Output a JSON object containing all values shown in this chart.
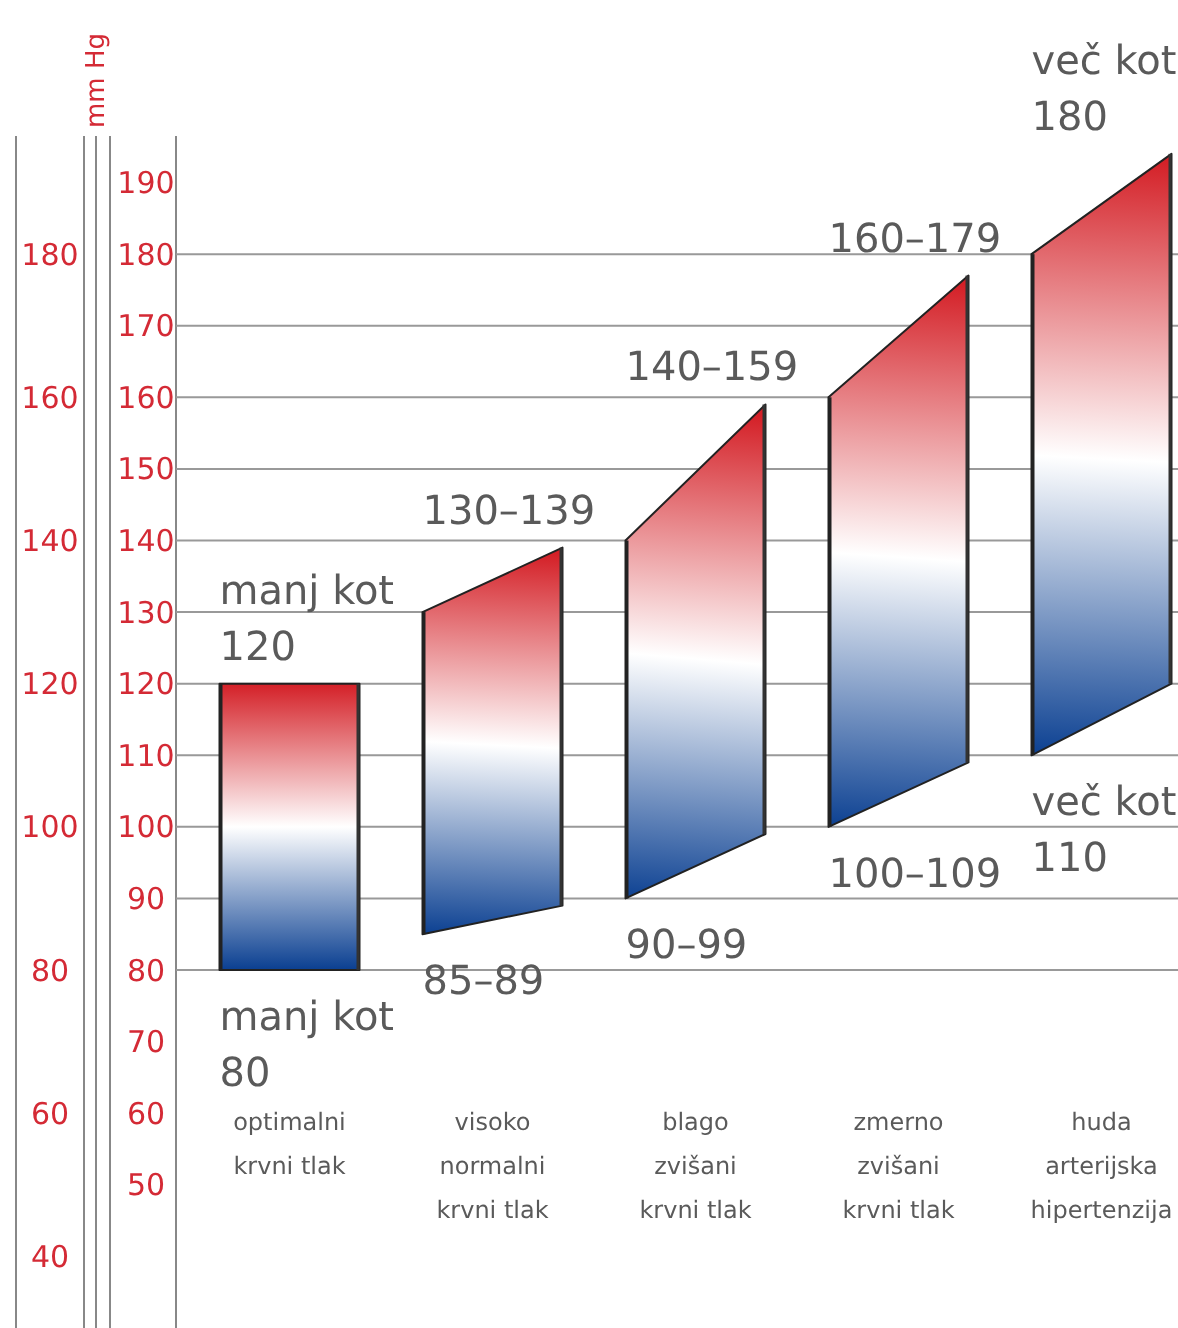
{
  "chart_data": {
    "type": "bar",
    "y2label": "mm Hg",
    "categories": [
      "optimalni\nkrvni tlak",
      "visoko\nnormalni\nkrvni tlak",
      "blago\nzvišani\nkrvni tlak",
      "zmerno\nzvišani\nkrvni tlak",
      "huda\narterijska\nhipertenzija"
    ],
    "ylim": [
      30,
      196.5
    ],
    "yticks": [
      50,
      60,
      70,
      80,
      90,
      100,
      110,
      120,
      130,
      140,
      150,
      160,
      170,
      180,
      190
    ],
    "y2lim": [
      30,
      196.5
    ],
    "y2ticks": [
      40,
      60,
      80,
      100,
      120,
      140,
      160,
      180
    ],
    "ref_lines": [
      {
        "axis": "y",
        "value": 80
      },
      {
        "axis": "y",
        "value": 90
      },
      {
        "axis": "y",
        "value": 100
      },
      {
        "axis": "y",
        "value": 110
      },
      {
        "axis": "y",
        "value": 120
      },
      {
        "axis": "y",
        "value": 130
      },
      {
        "axis": "y",
        "value": 140
      },
      {
        "axis": "y",
        "value": 150
      },
      {
        "axis": "y",
        "value": 160
      },
      {
        "axis": "y",
        "value": 170
      },
      {
        "axis": "y",
        "value": 180
      }
    ],
    "series": [
      {
        "base": [
          80,
          85,
          90,
          100,
          110
        ],
        "values": [
          40,
          45,
          50,
          60,
          70
        ],
        "color": "#222222"
      },
      {
        "base": [
          80,
          89,
          99,
          109,
          120
        ],
        "values": [
          40,
          50,
          60,
          68,
          74
        ],
        "color": "#333333"
      }
    ],
    "annotations": [
      {
        "text": "manj kot\n120",
        "x": "optimalni\nkrvni tlak",
        "y": 120
      },
      {
        "text": "manj kot\n80",
        "x": "optimalni\nkrvni tlak",
        "y": 80
      },
      {
        "text": "130–139",
        "x": "visoko\nnormalni\nkrvni tlak",
        "y": 139
      },
      "85–89",
      {
        "text": "140–159",
        "x": "blago\nzvišani\nkrvni tlak",
        "y": 159
      },
      {
        "text": "90–99",
        "x": "blago\nzvišani\nkrvni tlak",
        "y": 90
      },
      "160–179",
      {
        "text": "100–109",
        "x": "zmerno\nzvišani\nkrvni tlak",
        "y": 100
      },
      {
        "text": "več kot\n180",
        "x": "huda\narterijska\nhipertenzija",
        "y": 180
      },
      {
        "text": "več kot\n110",
        "x": "huda\narterijska\nhipertenzija",
        "y": 110
      }
    ]
  }
}
